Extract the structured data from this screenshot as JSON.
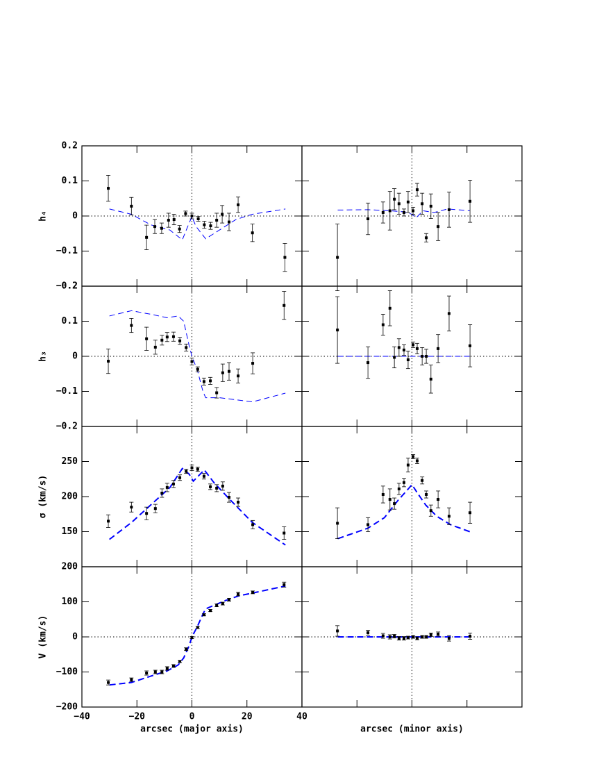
{
  "chart_data": [
    {
      "type": "scatter",
      "ylabel": "h₄",
      "xlim": [
        -40,
        40
      ],
      "ylim": [
        -0.2,
        0.2
      ],
      "yticks": [
        {
          "value": -0.2,
          "label": "−0.2"
        },
        {
          "value": -0.1,
          "label": "−0.1"
        },
        0,
        0.1,
        0.2
      ],
      "hline": true,
      "color": "#0000ff",
      "x": [
        -30.4,
        -22,
        -16.5,
        -13.5,
        -11,
        -8.5,
        -6.5,
        -4.5,
        -2.3,
        0,
        2.3,
        4.5,
        6.8,
        9,
        11,
        13.5,
        16.8,
        22,
        33.8
      ],
      "values": [
        0.079,
        0.028,
        -0.061,
        -0.03,
        -0.035,
        -0.012,
        -0.01,
        -0.037,
        0.007,
        0.0,
        -0.008,
        -0.025,
        -0.028,
        -0.012,
        0.005,
        -0.017,
        0.032,
        -0.048,
        -0.118
      ],
      "errors": [
        0.037,
        0.025,
        0.035,
        0.02,
        0.015,
        0.02,
        0.015,
        0.01,
        0.007,
        0.008,
        0.007,
        0.01,
        0.01,
        0.02,
        0.025,
        0.025,
        0.022,
        0.025,
        0.04
      ],
      "model_x": [
        -30,
        -22,
        -15,
        -8,
        -3.5,
        -1,
        0,
        1.5,
        5,
        10,
        16,
        22,
        34
      ],
      "model_values": [
        0.02,
        0.005,
        -0.025,
        -0.04,
        -0.068,
        -0.02,
        -0.002,
        -0.03,
        -0.065,
        -0.04,
        -0.01,
        0.005,
        0.02
      ]
    },
    {
      "type": "scatter",
      "xlim": [
        -40,
        40
      ],
      "ylim": [
        -0.2,
        0.2
      ],
      "hline": true,
      "color": "#0000ff",
      "x": [
        -27.1,
        -16,
        -10.5,
        -8,
        -6.4,
        -4.7,
        -2.9,
        -1.4,
        0.4,
        1.9,
        3.7,
        5.2,
        6.9,
        9.5,
        13.5,
        21.1
      ],
      "values": [
        -0.118,
        -0.008,
        0.01,
        0.015,
        0.048,
        0.035,
        0.01,
        0.04,
        0.015,
        0.075,
        0.035,
        -0.062,
        0.028,
        -0.03,
        0.018,
        0.042
      ],
      "errors": [
        0.095,
        0.045,
        0.03,
        0.055,
        0.03,
        0.03,
        0.01,
        0.03,
        0.01,
        0.018,
        0.03,
        0.012,
        0.035,
        0.04,
        0.05,
        0.06
      ],
      "model_x": [
        -27,
        -16,
        -8,
        -3,
        0,
        1.5,
        4,
        8,
        13,
        21
      ],
      "model_values": [
        0.017,
        0.018,
        0.015,
        0.012,
        0.005,
        -0.005,
        0.015,
        0.01,
        0.02,
        0.015
      ]
    },
    {
      "type": "scatter",
      "ylabel": "h₃",
      "xlim": [
        -40,
        40
      ],
      "ylim": [
        -0.2,
        0.2
      ],
      "yticks": [
        {
          "value": -0.2,
          "label": "−0.2"
        },
        {
          "value": -0.1,
          "label": "−0.1"
        },
        0,
        0.1,
        0.2
      ],
      "hline": true,
      "color": "#0000ff",
      "x": [
        -30.4,
        -22,
        -16.5,
        -13.3,
        -10.9,
        -9,
        -6.7,
        -4.4,
        -2.1,
        0,
        2.1,
        4.4,
        6.7,
        9,
        11.2,
        13.5,
        16.8,
        22.1,
        33.5
      ],
      "values": [
        -0.014,
        0.088,
        0.05,
        0.026,
        0.046,
        0.055,
        0.056,
        0.044,
        0.025,
        -0.015,
        -0.037,
        -0.072,
        -0.07,
        -0.104,
        -0.047,
        -0.043,
        -0.056,
        -0.02,
        0.145
      ],
      "errors": [
        0.035,
        0.02,
        0.033,
        0.02,
        0.014,
        0.013,
        0.013,
        0.01,
        0.01,
        0.01,
        0.007,
        0.01,
        0.01,
        0.015,
        0.025,
        0.025,
        0.02,
        0.03,
        0.04
      ],
      "model_x": [
        -30,
        -22,
        -15,
        -9,
        -5,
        -3,
        -1,
        0,
        2,
        4,
        5,
        10,
        22,
        34
      ],
      "model_values": [
        0.115,
        0.13,
        0.12,
        0.11,
        0.115,
        0.1,
        0.03,
        0,
        -0.04,
        -0.1,
        -0.118,
        -0.118,
        -0.13,
        -0.105
      ]
    },
    {
      "type": "scatter",
      "xlim": [
        -40,
        40
      ],
      "ylim": [
        -0.2,
        0.2
      ],
      "hline": true,
      "color": "#0000ff",
      "x": [
        -27.1,
        -16,
        -10.5,
        -8,
        -6.4,
        -4.7,
        -2.9,
        -1.4,
        0.4,
        1.9,
        3.7,
        5.2,
        6.9,
        9.5,
        13.5,
        21.1
      ],
      "values": [
        0.075,
        -0.018,
        0.09,
        0.137,
        -0.003,
        0.025,
        0.018,
        -0.01,
        0.033,
        0.022,
        0.0,
        0.0,
        -0.065,
        0.022,
        0.122,
        0.03
      ],
      "errors": [
        0.095,
        0.045,
        0.03,
        0.05,
        0.03,
        0.025,
        0.015,
        0.025,
        0.008,
        0.015,
        0.025,
        0.02,
        0.04,
        0.04,
        0.05,
        0.06
      ],
      "model_x": [
        -27,
        21
      ],
      "model_values": [
        0,
        0
      ]
    },
    {
      "type": "scatter",
      "ylabel": "σ (km/s)",
      "xlim": [
        -40,
        40
      ],
      "ylim": [
        100,
        300
      ],
      "yticks": [
        150,
        200,
        250
      ],
      "hline": false,
      "color": "#0000ff",
      "x": [
        -30.4,
        -22,
        -16.5,
        -13.3,
        -10.9,
        -9,
        -6.7,
        -4.4,
        -2.1,
        0,
        2.1,
        4.4,
        6.7,
        9,
        11.2,
        13.5,
        16.8,
        22.1,
        33.5
      ],
      "values": [
        165,
        185,
        176,
        183,
        205,
        213,
        218,
        227,
        236,
        241,
        239,
        229,
        214,
        212,
        215,
        199,
        192,
        160,
        148
      ],
      "errors": [
        9,
        7,
        9,
        6,
        6,
        6,
        5,
        4,
        3,
        4,
        3,
        4,
        4,
        5,
        6,
        7,
        6,
        6,
        9
      ],
      "model_x": [
        -30,
        -22,
        -15,
        -8,
        -3.5,
        -1,
        0.5,
        2,
        4.5,
        8,
        14,
        22,
        34
      ],
      "model_values": [
        139,
        163,
        188,
        213,
        240,
        232,
        222,
        228,
        238,
        220,
        195,
        163,
        131
      ]
    },
    {
      "type": "scatter",
      "xlim": [
        -40,
        40
      ],
      "ylim": [
        100,
        300
      ],
      "hline": false,
      "color": "#0000ff",
      "x": [
        -27.1,
        -16,
        -10.5,
        -8,
        -6.4,
        -4.7,
        -2.9,
        -1.4,
        0.4,
        1.9,
        3.7,
        5.2,
        6.9,
        9.5,
        13.5,
        21.1
      ],
      "values": [
        162,
        160,
        203,
        196,
        190,
        211,
        220,
        245,
        257,
        251,
        223,
        203,
        180,
        196,
        172,
        177
      ],
      "errors": [
        22,
        10,
        12,
        15,
        8,
        8,
        6,
        10,
        3,
        4,
        5,
        5,
        8,
        12,
        12,
        15
      ],
      "model_x": [
        -27,
        -16,
        -10,
        -5,
        -2,
        0,
        2,
        5,
        9,
        14,
        21
      ],
      "model_values": [
        140,
        155,
        170,
        195,
        208,
        217,
        205,
        188,
        172,
        160,
        150
      ]
    },
    {
      "type": "scatter",
      "ylabel": "V (km/s)",
      "xlabel": "arcsec (major axis)",
      "xlim": [
        -40,
        40
      ],
      "ylim": [
        -200,
        200
      ],
      "yticks": [
        {
          "value": -200,
          "label": "−200"
        },
        {
          "value": -100,
          "label": "−100"
        },
        0,
        100,
        200
      ],
      "xticks": [
        {
          "value": -40,
          "label": "−40"
        },
        {
          "value": -20,
          "label": "−20"
        },
        0,
        20,
        40
      ],
      "hline": true,
      "color": "#0000ff",
      "x": [
        -30.4,
        -22,
        -16.5,
        -13.3,
        -10.9,
        -9,
        -6.7,
        -4.4,
        -2.1,
        0,
        2.1,
        4.4,
        6.7,
        9,
        11.2,
        13.5,
        16.8,
        22.1,
        33.5
      ],
      "values": [
        -130,
        -122,
        -103,
        -100,
        -100,
        -90,
        -83,
        -70,
        -35,
        -2,
        27,
        63,
        75,
        90,
        95,
        106,
        122,
        127,
        149
      ],
      "errors": [
        7,
        5,
        6,
        5,
        5,
        5,
        4,
        3,
        4,
        3,
        3,
        3,
        3,
        4,
        4,
        4,
        5,
        4,
        7
      ],
      "model_x": [
        -30,
        -22,
        -15,
        -9,
        -5,
        -3,
        -1,
        0,
        2,
        4,
        5,
        8,
        12,
        17,
        22,
        34
      ],
      "model_values": [
        -137,
        -130,
        -112,
        -97,
        -80,
        -60,
        -25,
        0,
        30,
        65,
        80,
        90,
        103,
        117,
        125,
        145
      ]
    },
    {
      "type": "scatter",
      "xlabel": "arcsec (minor axis)",
      "xlim": [
        -40,
        40
      ],
      "ylim": [
        -200,
        200
      ],
      "hline": true,
      "color": "#0000ff",
      "x": [
        -27.1,
        -16,
        -10.5,
        -8,
        -6.4,
        -4.7,
        -2.9,
        -1.4,
        0.4,
        1.9,
        3.7,
        5.2,
        6.9,
        9.5,
        13.5,
        21.1
      ],
      "values": [
        17,
        12,
        3,
        0,
        2,
        -4,
        -4,
        -2,
        0,
        -4,
        0,
        0,
        6,
        8,
        -4,
        2
      ],
      "errors": [
        15,
        7,
        7,
        6,
        5,
        5,
        5,
        4,
        4,
        4,
        4,
        4,
        5,
        6,
        8,
        9
      ],
      "model_x": [
        -27,
        21
      ],
      "model_values": [
        0,
        0
      ]
    }
  ]
}
